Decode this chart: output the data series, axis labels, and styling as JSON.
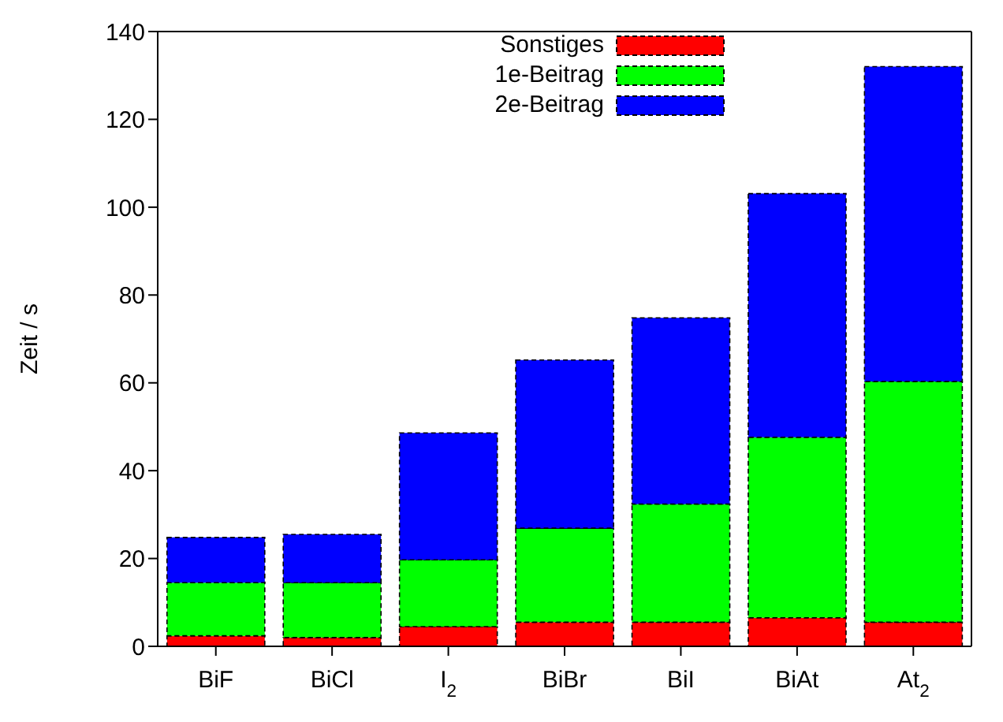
{
  "chart_data": {
    "type": "bar",
    "stacked": true,
    "ylabel": "Zeit / s",
    "categories": [
      "BiF",
      "BiCl",
      "I$_{2}$",
      "BiBr",
      "BiI",
      "BiAt",
      "At$_{2}$"
    ],
    "series": [
      {
        "name": "Sonstiges",
        "color": "#ff0000",
        "values": [
          2.4,
          2.0,
          4.5,
          5.5,
          5.5,
          6.5,
          5.5
        ]
      },
      {
        "name": "1e-Beitrag",
        "color": "#00ff00",
        "values": [
          12.1,
          12.5,
          15.2,
          21.4,
          26.9,
          41.1,
          54.8
        ]
      },
      {
        "name": "2e-Beitrag",
        "color": "#0000ff",
        "values": [
          10.3,
          11.0,
          28.9,
          38.3,
          42.4,
          55.5,
          71.7
        ]
      }
    ],
    "ylim": [
      0,
      140
    ],
    "yticks": [
      0,
      20,
      40,
      60,
      80,
      100,
      120,
      140
    ],
    "grid": false,
    "legend": "top"
  }
}
